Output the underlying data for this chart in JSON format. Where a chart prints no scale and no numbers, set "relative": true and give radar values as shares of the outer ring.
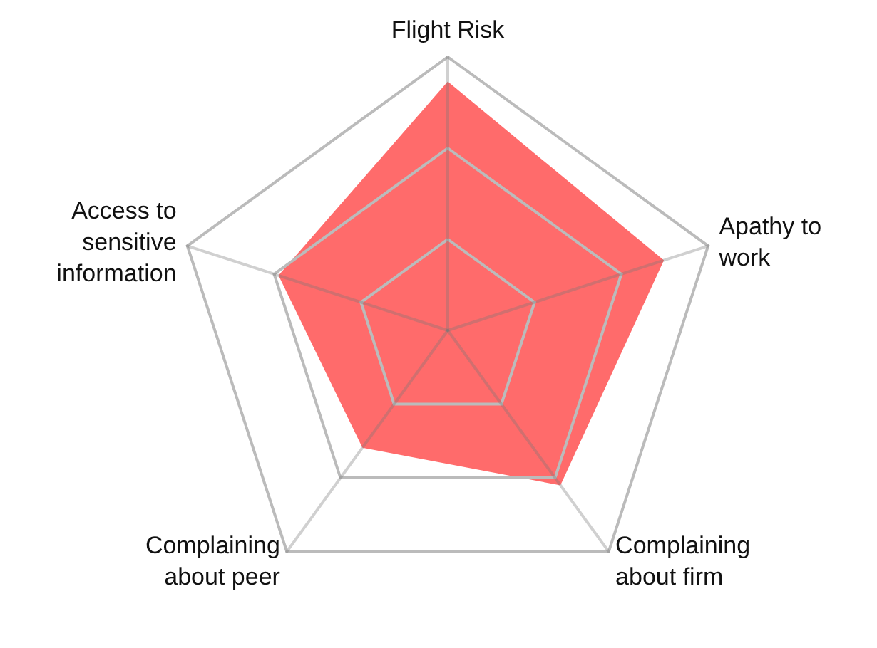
{
  "chart_data": {
    "type": "radar",
    "relative": true,
    "marker": "none",
    "categories": [
      "Flight Risk",
      "Apathy to\nwork",
      "Complaining\nabout firm",
      "Complaining\nabout peer",
      "Access to\nsensitive\ninformation"
    ],
    "series": [
      {
        "color": "#ff6b6b",
        "values": [
          0.91,
          0.83,
          0.7,
          0.53,
          0.65
        ]
      }
    ]
  }
}
